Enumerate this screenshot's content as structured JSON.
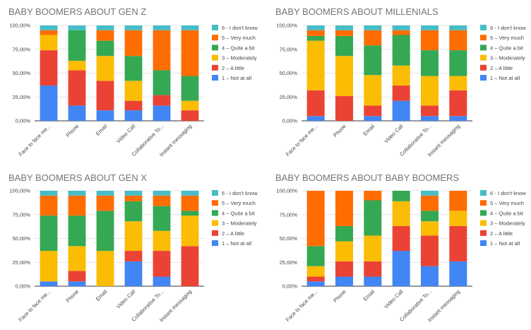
{
  "colors": [
    "#4285F4",
    "#EA4335",
    "#FBBC04",
    "#34A853",
    "#FF6D01",
    "#46BDC6"
  ],
  "legend": [
    "6 - I don't know",
    "5 – Very much",
    "4 – Quite a bit",
    "3 – Moderately",
    "2 – A little",
    "1 – Not at all"
  ],
  "chart_data": [
    {
      "type": "bar",
      "stacked": true,
      "title": "BABY BOOMERS ABOUT GEN Z",
      "categories": [
        "Face to face me...",
        "Phone",
        "Email",
        "Video Call",
        "Collaborative To...",
        "Instant messaging"
      ],
      "yticks": [
        "0,00%",
        "25,00%",
        "50,00%",
        "75,00%",
        "100,00%"
      ],
      "ylim": [
        0,
        100
      ],
      "legend_position": "right",
      "series": [
        {
          "name": "1 – Not at all",
          "values": [
            37,
            16,
            11,
            11,
            16,
            0
          ]
        },
        {
          "name": "2 – A little",
          "values": [
            37,
            37,
            31,
            10,
            11,
            11
          ]
        },
        {
          "name": "3 – Moderately",
          "values": [
            16,
            10,
            26,
            21,
            0,
            10
          ]
        },
        {
          "name": "4 – Quite a bit",
          "values": [
            0,
            32,
            16,
            26,
            26,
            26
          ]
        },
        {
          "name": "5 – Very much",
          "values": [
            5,
            0,
            11,
            27,
            42,
            48
          ]
        },
        {
          "name": "6 - I don't know",
          "values": [
            5,
            5,
            5,
            5,
            5,
            5
          ]
        }
      ]
    },
    {
      "type": "bar",
      "stacked": true,
      "title": "BABY BOOMERS ABOUT MILLENIALS",
      "categories": [
        "Face to face me...",
        "Phone",
        "Email",
        "Video Call",
        "Collaborative To...",
        "Instant messaging"
      ],
      "yticks": [
        "0,00%",
        "25,00%",
        "50,00%",
        "75,00%",
        "100,00%"
      ],
      "ylim": [
        0,
        100
      ],
      "legend_position": "right",
      "series": [
        {
          "name": "1 – Not at all",
          "values": [
            5,
            0,
            5,
            21,
            5,
            5
          ]
        },
        {
          "name": "2 – A little",
          "values": [
            27,
            26,
            11,
            16,
            11,
            27
          ]
        },
        {
          "name": "3 – Moderately",
          "values": [
            52,
            42,
            32,
            21,
            31,
            15
          ]
        },
        {
          "name": "4 – Quite a bit",
          "values": [
            5,
            21,
            31,
            32,
            27,
            27
          ]
        },
        {
          "name": "5 – Very much",
          "values": [
            6,
            6,
            16,
            5,
            21,
            21
          ]
        },
        {
          "name": "6 - I don't know",
          "values": [
            5,
            5,
            5,
            5,
            5,
            5
          ]
        }
      ]
    },
    {
      "type": "bar",
      "stacked": true,
      "title": "BABY BOOMERS ABOUT GEN X",
      "categories": [
        "Face to face me...",
        "Phone",
        "Email",
        "Video Call",
        "Collaborative To...",
        "Instant messaging"
      ],
      "yticks": [
        "0,00%",
        "25,00%",
        "50,00%",
        "75,00%",
        "100,00%"
      ],
      "ylim": [
        0,
        100
      ],
      "legend_position": "right",
      "series": [
        {
          "name": "1 – Not at all",
          "values": [
            5,
            5,
            0,
            26,
            10,
            0
          ]
        },
        {
          "name": "2 – A little",
          "values": [
            0,
            11,
            0,
            11,
            27,
            42
          ]
        },
        {
          "name": "3 – Moderately",
          "values": [
            32,
            26,
            37,
            31,
            21,
            32
          ]
        },
        {
          "name": "4 – Quite a bit",
          "values": [
            37,
            32,
            42,
            21,
            26,
            5
          ]
        },
        {
          "name": "5 – Very much",
          "values": [
            21,
            21,
            16,
            6,
            11,
            16
          ]
        },
        {
          "name": "6 - I don't know",
          "values": [
            5,
            5,
            5,
            5,
            5,
            5
          ]
        }
      ]
    },
    {
      "type": "bar",
      "stacked": true,
      "title": "BABY BOOMERS ABOUT BABY BOOMERS",
      "categories": [
        "Face to face me...",
        "Phone",
        "Email",
        "Video Call",
        "Collaborative To...",
        "Instant messaging"
      ],
      "yticks": [
        "0,00%",
        "25,00%",
        "50,00%",
        "75,00%",
        "100,00%"
      ],
      "ylim": [
        0,
        100
      ],
      "legend_position": "right",
      "series": [
        {
          "name": "1 – Not at all",
          "values": [
            5,
            10,
            10,
            37,
            21,
            26
          ]
        },
        {
          "name": "2 – A little",
          "values": [
            5,
            16,
            16,
            26,
            32,
            37
          ]
        },
        {
          "name": "3 – Moderately",
          "values": [
            11,
            21,
            27,
            26,
            15,
            16
          ]
        },
        {
          "name": "4 – Quite a bit",
          "values": [
            21,
            16,
            37,
            11,
            11,
            0
          ]
        },
        {
          "name": "5 – Very much",
          "values": [
            58,
            37,
            10,
            0,
            16,
            21
          ]
        },
        {
          "name": "6 - I don't know",
          "values": [
            0,
            0,
            0,
            0,
            5,
            0
          ]
        }
      ]
    }
  ]
}
